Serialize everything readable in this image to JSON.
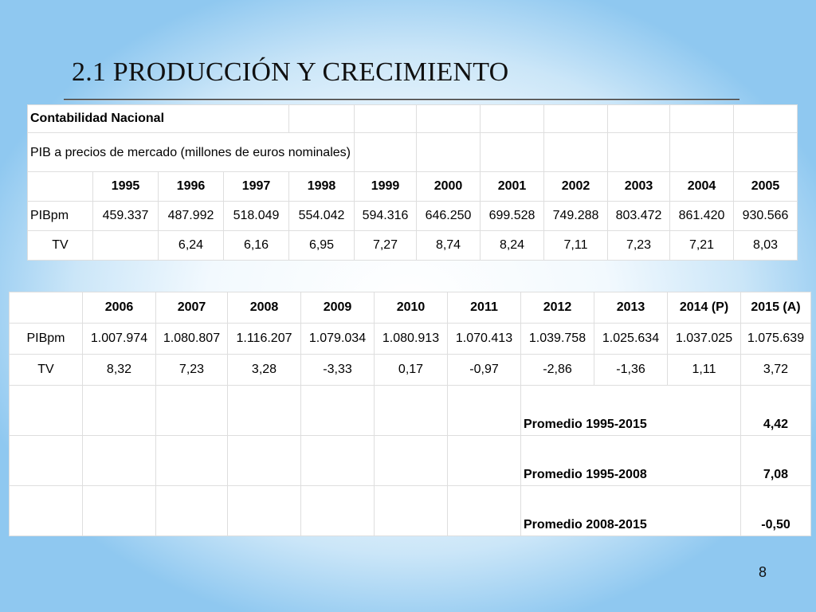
{
  "slide": {
    "title": "2.1 PRODUCCIÓN Y CRECIMIENTO",
    "page_number": "8"
  },
  "table1": {
    "heading": "Contabilidad Nacional",
    "subheading": "PIB a precios de mercado (millones de euros nominales)",
    "years": [
      "1995",
      "1996",
      "1997",
      "1998",
      "1999",
      "2000",
      "2001",
      "2002",
      "2003",
      "2004",
      "2005"
    ],
    "pib_label": "PIBpm",
    "pib": [
      "459.337",
      "487.992",
      "518.049",
      "554.042",
      "594.316",
      "646.250",
      "699.528",
      "749.288",
      "803.472",
      "861.420",
      "930.566"
    ],
    "tv_label": "TV",
    "tv": [
      "",
      "6,24",
      "6,16",
      "6,95",
      "7,27",
      "8,74",
      "8,24",
      "7,11",
      "7,23",
      "7,21",
      "8,03"
    ]
  },
  "table2": {
    "years": [
      "2006",
      "2007",
      "2008",
      "2009",
      "2010",
      "2011",
      "2012",
      "2013",
      "2014 (P)",
      "2015 (A)"
    ],
    "pib_label": "PIBpm",
    "pib": [
      "1.007.974",
      "1.080.807",
      "1.116.207",
      "1.079.034",
      "1.080.913",
      "1.070.413",
      "1.039.758",
      "1.025.634",
      "1.037.025",
      "1.075.639"
    ],
    "tv_label": "TV",
    "tv": [
      "8,32",
      "7,23",
      "3,28",
      "-3,33",
      "0,17",
      "-0,97",
      "-2,86",
      "-1,36",
      "1,11",
      "3,72"
    ],
    "promedios": [
      {
        "label": "Promedio 1995-2015",
        "value": "4,42"
      },
      {
        "label": "Promedio 1995-2008",
        "value": "7,08"
      },
      {
        "label": "Promedio 2008-2015",
        "value": "-0,50"
      }
    ]
  }
}
